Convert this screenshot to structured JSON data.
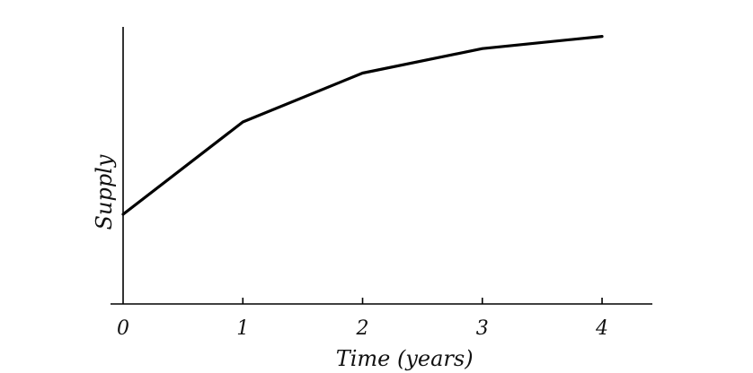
{
  "chart_data": {
    "type": "line",
    "title": "",
    "xlabel": "Time (years)",
    "ylabel": "Supply",
    "x": [
      0,
      1,
      2,
      3,
      4
    ],
    "xticks": [
      "0",
      "1",
      "2",
      "3",
      "4"
    ],
    "series": [
      {
        "values": [
          3.2,
          6.6,
          8.4,
          9.3,
          9.75
        ]
      }
    ],
    "xlim": [
      0,
      4.42
    ],
    "ylim": [
      -0.1,
      10.1
    ],
    "yticks_shown": false,
    "grid": false,
    "legend": "none",
    "colors": {
      "line": "#000000",
      "axis": "#000000",
      "text": "#111111"
    }
  }
}
